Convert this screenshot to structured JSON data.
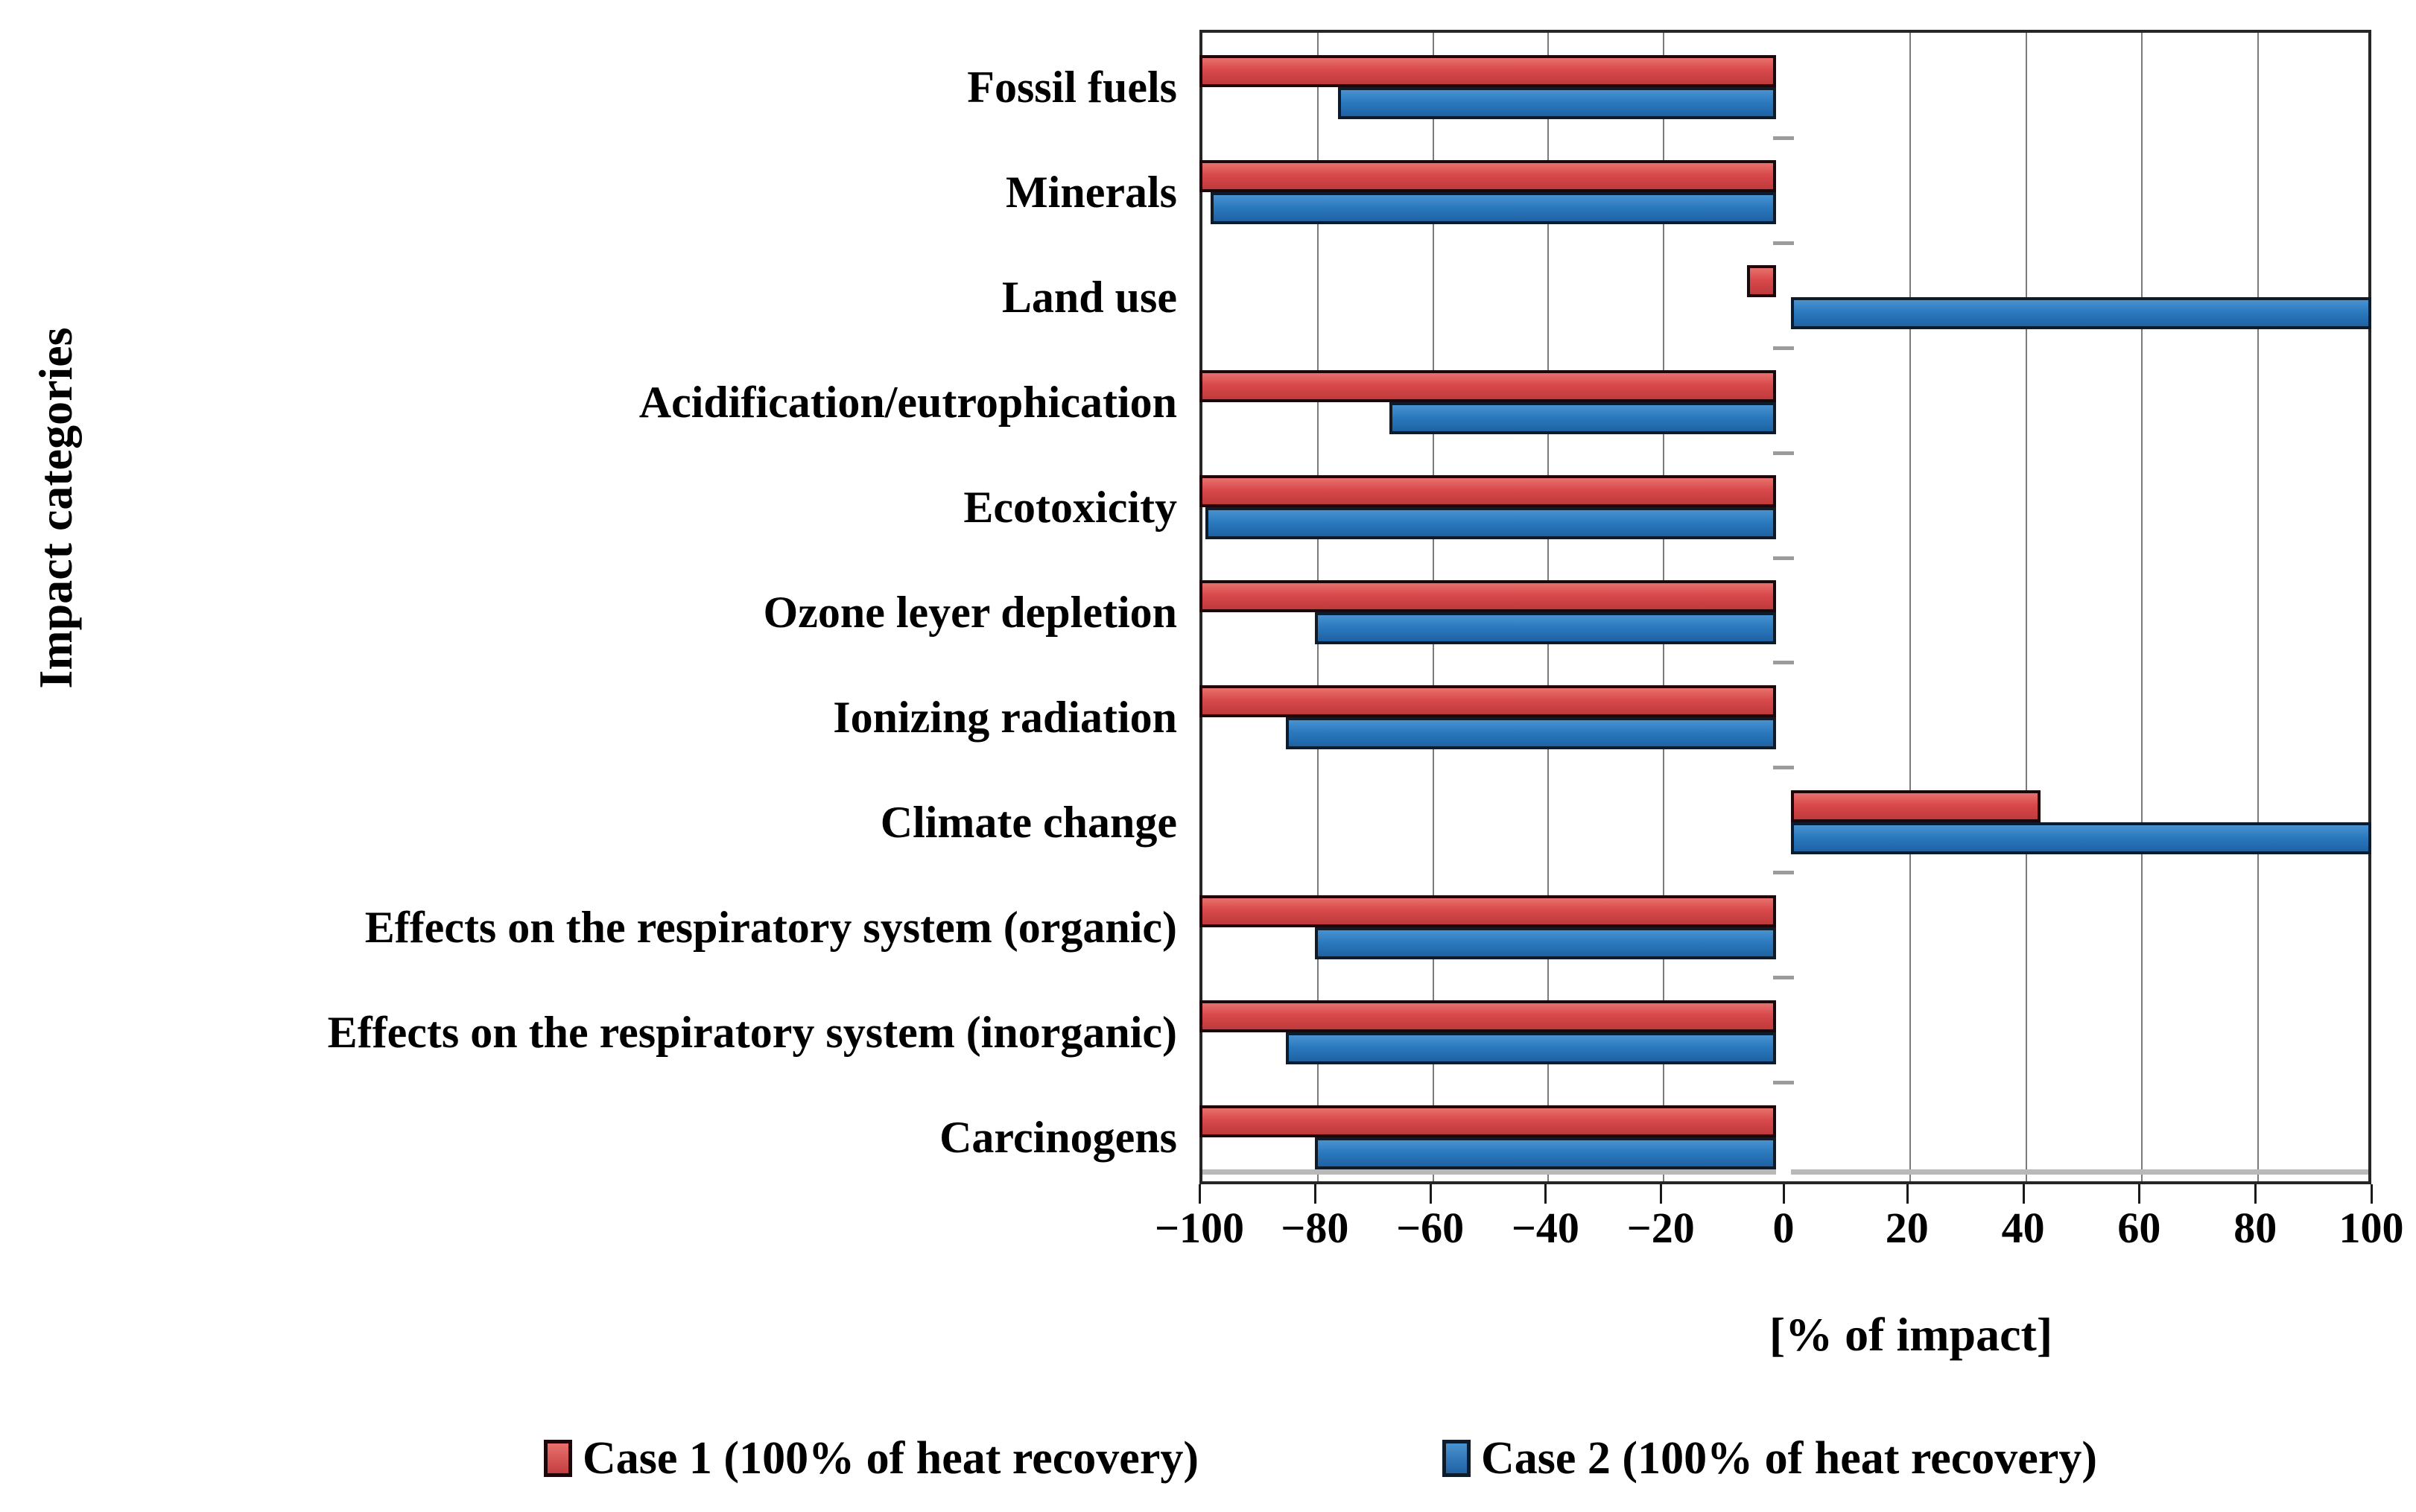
{
  "chart_data": {
    "type": "bar",
    "orientation": "horizontal",
    "title": "",
    "xlabel": "[% of impact]",
    "ylabel": "Impact categories",
    "xlim": [
      -100,
      100
    ],
    "x_ticks": [
      -100,
      -80,
      -60,
      -40,
      -20,
      0,
      20,
      40,
      60,
      80,
      100
    ],
    "x_tick_labels": [
      "−100",
      "−80",
      "−60",
      "−40",
      "−20",
      "0",
      "20",
      "40",
      "60",
      "80",
      "100"
    ],
    "grid": true,
    "legend_position": "bottom",
    "categories": [
      "Fossil fuels",
      "Minerals",
      "Land use",
      "Acidification/eutrophication",
      "Ecotoxicity",
      "Ozone leyer depletion",
      "Ionizing radiation",
      "Climate change",
      "Effects on the respiratory system (organic)",
      "Effects on the respiratory system (inorganic)",
      "Carcinogens"
    ],
    "series": [
      {
        "name": "Case 1 (100% of heat recovery)",
        "color": "#d8494b",
        "values": [
          -100,
          -100,
          -5,
          -100,
          -100,
          -100,
          -100,
          43,
          -100,
          -100,
          -100
        ]
      },
      {
        "name": "Case 2 (100% of heat recovery)",
        "color": "#2b7abf",
        "values": [
          -76,
          -98,
          100,
          -67,
          -99,
          -80,
          -85,
          100,
          -80,
          -85,
          -80
        ]
      }
    ]
  },
  "colors": {
    "case1_red": "#d8494b",
    "case2_blue": "#2b7abf",
    "gridline": "#7b7b7b",
    "plot_border": "#262626",
    "axis_gray_line": "#b9b9b9",
    "text": "#000000",
    "background": "#ffffff"
  }
}
